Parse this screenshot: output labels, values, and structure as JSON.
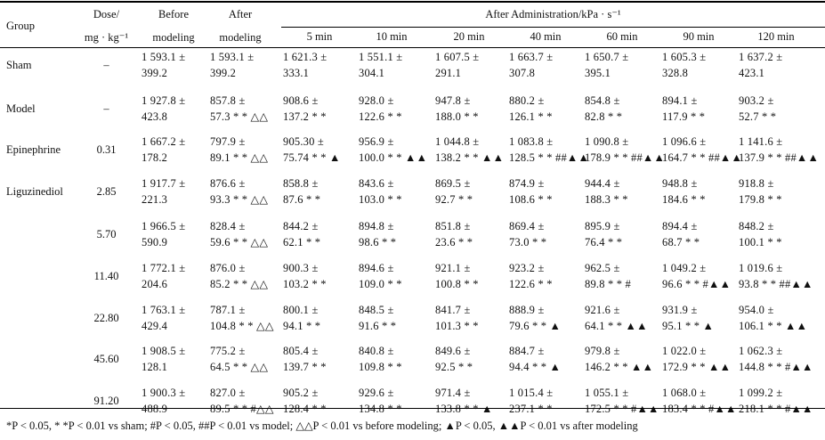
{
  "header": {
    "group": "Group",
    "dose_line1": "Dose/",
    "dose_line2": "mg · kg⁻¹",
    "before_line1": "Before",
    "before_line2": "modeling",
    "after_line1": "After",
    "after_line2": "modeling",
    "after_admin": "After Administration/kPa · s⁻¹",
    "times": [
      "5 min",
      "10 min",
      "20 min",
      "40 min",
      "60 min",
      "90 min",
      "120 min"
    ]
  },
  "rows": [
    {
      "group": "Sham",
      "dose": "–",
      "cells": [
        [
          "1 593.1 ±",
          "399.2"
        ],
        [
          "1 593.1 ±",
          "399.2"
        ],
        [
          "1 621.3 ±",
          "333.1"
        ],
        [
          "1 551.1 ±",
          "304.1"
        ],
        [
          "1 607.5 ±",
          "291.1"
        ],
        [
          "1 663.7 ±",
          "307.8"
        ],
        [
          "1 650.7 ±",
          "395.1"
        ],
        [
          "1 605.3 ±",
          "328.8"
        ],
        [
          "1 637.2 ±",
          "423.1"
        ]
      ]
    },
    {
      "group": "Model",
      "dose": "–",
      "cells": [
        [
          "1 927.8 ±",
          "423.8"
        ],
        [
          "857.8 ±",
          "57.3 * * △△"
        ],
        [
          "908.6 ±",
          "137.2 * *"
        ],
        [
          "928.0 ±",
          "122.6 * *"
        ],
        [
          "947.8 ±",
          "188.0 * *"
        ],
        [
          "880.2 ±",
          "126.1 * *"
        ],
        [
          "854.8 ±",
          "82.8 * *"
        ],
        [
          "894.1 ±",
          "117.9 * *"
        ],
        [
          "903.2 ±",
          "52.7 * *"
        ]
      ]
    },
    {
      "group": "Epinephrine",
      "dose": "0.31",
      "cells": [
        [
          "1 667.2 ±",
          "178.2"
        ],
        [
          "797.9 ±",
          "89.1 * * △△"
        ],
        [
          "905.30 ±",
          "75.74 * * ▲"
        ],
        [
          "956.9 ±",
          "100.0 * * ▲▲"
        ],
        [
          "1 044.8 ±",
          "138.2 * * ▲▲"
        ],
        [
          "1 083.8 ±",
          "128.5 * * ##▲▲"
        ],
        [
          "1 090.8 ±",
          "178.9 * * ##▲▲"
        ],
        [
          "1 096.6 ±",
          "164.7 * * ##▲▲"
        ],
        [
          "1 141.6 ±",
          "137.9 * * ##▲▲"
        ]
      ]
    },
    {
      "group": "Liguzinediol",
      "dose": "2.85",
      "cells": [
        [
          "1 917.7 ±",
          "221.3"
        ],
        [
          "876.6 ±",
          "93.3 * * △△"
        ],
        [
          "858.8 ±",
          "87.6 * *"
        ],
        [
          "843.6 ±",
          "103.0 * *"
        ],
        [
          "869.5 ±",
          "92.7 * *"
        ],
        [
          "874.9 ±",
          "108.6 * *"
        ],
        [
          "944.4 ±",
          "188.3 * *"
        ],
        [
          "948.8 ±",
          "184.6 * *"
        ],
        [
          "918.8 ±",
          "179.8 * *"
        ]
      ]
    },
    {
      "group": "",
      "dose": "5.70",
      "cells": [
        [
          "1 966.5 ±",
          "590.9"
        ],
        [
          "828.4 ±",
          "59.6 * * △△"
        ],
        [
          "844.2 ±",
          "62.1 * *"
        ],
        [
          "894.8 ±",
          "98.6 * *"
        ],
        [
          "851.8 ±",
          "23.6 * *"
        ],
        [
          "869.4 ±",
          "73.0 * *"
        ],
        [
          "895.9 ±",
          "76.4 * *"
        ],
        [
          "894.4 ±",
          "68.7 * *"
        ],
        [
          "848.2 ±",
          "100.1 * *"
        ]
      ]
    },
    {
      "group": "",
      "dose": "11.40",
      "cells": [
        [
          "1 772.1 ±",
          "204.6"
        ],
        [
          "876.0 ±",
          "85.2 * * △△"
        ],
        [
          "900.3 ±",
          "103.2 * *"
        ],
        [
          "894.6 ±",
          "109.0 * *"
        ],
        [
          "921.1 ±",
          "100.8 * *"
        ],
        [
          "923.2 ±",
          "122.6 * *"
        ],
        [
          "962.5 ±",
          "89.8 * * #"
        ],
        [
          "1 049.2 ±",
          "96.6 * * #▲▲"
        ],
        [
          "1 019.6 ±",
          "93.8 * * ##▲▲"
        ]
      ]
    },
    {
      "group": "",
      "dose": "22.80",
      "cells": [
        [
          "1 763.1 ±",
          "429.4"
        ],
        [
          "787.1 ±",
          "104.8 * * △△"
        ],
        [
          "800.1 ±",
          "94.1 * *"
        ],
        [
          "848.5 ±",
          "91.6 * *"
        ],
        [
          "841.7 ±",
          "101.3 * *"
        ],
        [
          "888.9 ±",
          "79.6 * * ▲"
        ],
        [
          "921.6 ±",
          "64.1 * * ▲▲"
        ],
        [
          "931.9 ±",
          "95.1 * * ▲"
        ],
        [
          "954.0 ±",
          "106.1 * * ▲▲"
        ]
      ]
    },
    {
      "group": "",
      "dose": "45.60",
      "cells": [
        [
          "1 908.5 ±",
          "128.1"
        ],
        [
          "775.2 ±",
          "64.5 * * △△"
        ],
        [
          "805.4 ±",
          "139.7 * *"
        ],
        [
          "840.8 ±",
          "109.8 * *"
        ],
        [
          "849.6 ±",
          "92.5 * *"
        ],
        [
          "884.7 ±",
          "94.4 * * ▲"
        ],
        [
          "979.8 ±",
          "146.2 * * ▲▲"
        ],
        [
          "1 022.0 ±",
          "172.9 * * ▲▲"
        ],
        [
          "1 062.3 ±",
          "144.8 * * #▲▲"
        ]
      ]
    },
    {
      "group": "",
      "dose": "91.20",
      "cells": [
        [
          "1 900.3 ±",
          "488.9"
        ],
        [
          "827.0 ±",
          "89.5 * * #△△"
        ],
        [
          "905.2 ±",
          "128.4 * *"
        ],
        [
          "929.6 ±",
          "134.8 * *"
        ],
        [
          "971.4 ±",
          "133.8 * * ▲"
        ],
        [
          "1 015.4 ±",
          "237.1 * *"
        ],
        [
          "1 055.1 ±",
          "172.5 * * #▲▲"
        ],
        [
          "1 068.0 ±",
          "183.4 * * #▲▲"
        ],
        [
          "1 099.2 ±",
          "218.1 * * #▲▲"
        ]
      ]
    }
  ],
  "footnote": "*P < 0.05, * *P < 0.01 vs sham; #P < 0.05, ##P < 0.01 vs model; △△P < 0.01 vs before modeling; ▲P < 0.05, ▲▲P < 0.01 vs after modeling"
}
